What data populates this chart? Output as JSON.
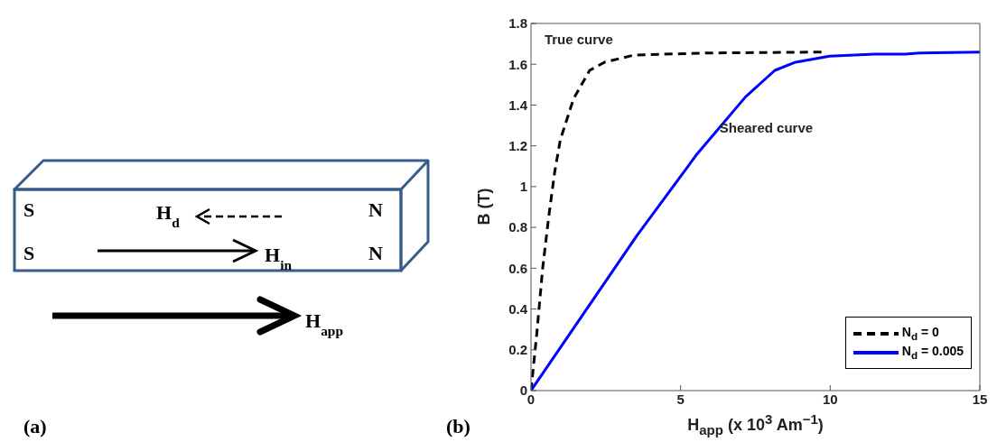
{
  "chart_data": [
    {
      "type": "other",
      "annotations": [
        "S",
        "S",
        "N",
        "N",
        "H$_{d}$",
        "H$_{in}$",
        "H$_{app}$",
        "(a)"
      ]
    },
    {
      "type": "line",
      "xlabel": "H$_{app}$ (x 10$^{3}$ Am$^{−1}$)",
      "ylabel": "B (T)",
      "xlim": [
        0,
        15
      ],
      "xticks": [
        0,
        5,
        10,
        15
      ],
      "ylim": [
        0,
        1.8
      ],
      "yticks": [
        0,
        0.2,
        0.4,
        0.6,
        0.8,
        1,
        1.2,
        1.4,
        1.6,
        1.8
      ],
      "grid": false,
      "legend": "bottom right",
      "marker": "none",
      "annotations": [
        "True curve",
        "Sheared curve",
        "(b)"
      ],
      "series": [
        {
          "name": "N$_{d}$ = 0",
          "color": "#000000",
          "line_style": "dashed",
          "x": [
            0,
            0.2,
            0.39,
            0.59,
            0.79,
            0.98,
            1.42,
            1.96,
            2.46,
            3.44,
            5.9,
            9.82
          ],
          "values": [
            0,
            0.29,
            0.6,
            0.85,
            1.07,
            1.23,
            1.43,
            1.57,
            1.61,
            1.645,
            1.655,
            1.66
          ]
        },
        {
          "name": "N$_{d}$ = 0.005",
          "color": "#0000ff",
          "line_style": "solid",
          "x": [
            0,
            3.54,
            5.55,
            7.17,
            8.15,
            8.84,
            9.98,
            11.5,
            12.5,
            13,
            15
          ],
          "values": [
            0,
            0.76,
            1.16,
            1.44,
            1.57,
            1.61,
            1.64,
            1.65,
            1.65,
            1.655,
            1.66
          ]
        }
      ]
    }
  ]
}
